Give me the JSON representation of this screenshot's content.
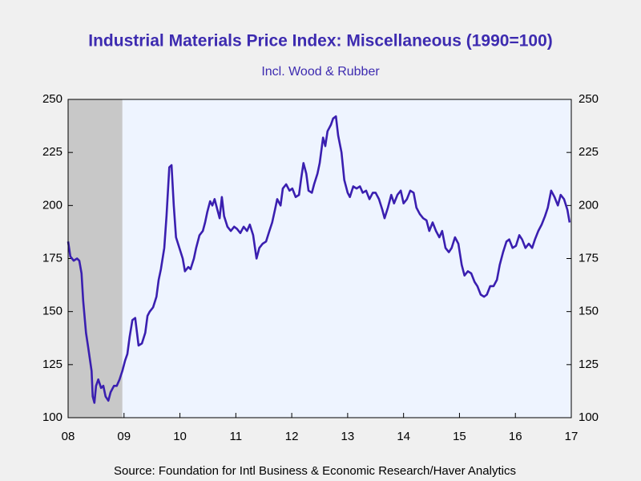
{
  "chart_data": {
    "type": "line",
    "title": "Industrial Materials Price Index: Miscellaneous (1990=100)",
    "subtitle": "Incl. Wood & Rubber",
    "source": "Source:  Foundation for Intl Business & Economic Research/Haver Analytics",
    "xlim": [
      2008,
      2017
    ],
    "xticks": [
      {
        "value": 2008,
        "label": "08"
      },
      {
        "value": 2009,
        "label": "09"
      },
      {
        "value": 2010,
        "label": "10"
      },
      {
        "value": 2011,
        "label": "11"
      },
      {
        "value": 2012,
        "label": "12"
      },
      {
        "value": 2013,
        "label": "13"
      },
      {
        "value": 2014,
        "label": "14"
      },
      {
        "value": 2015,
        "label": "15"
      },
      {
        "value": 2016,
        "label": "16"
      },
      {
        "value": 2017,
        "label": "17"
      }
    ],
    "ylim": [
      100,
      250
    ],
    "yticks": [
      100,
      125,
      150,
      175,
      200,
      225,
      250
    ],
    "y2lim": [
      100,
      250
    ],
    "y2ticks": [
      100,
      125,
      150,
      175,
      200,
      225,
      250
    ],
    "shaded_x": [
      2008,
      2008.97
    ],
    "shade_color": "#c8c8c8",
    "plot_background": "#eef4ff",
    "x": [
      2008.0,
      2008.04,
      2008.1,
      2008.16,
      2008.2,
      2008.24,
      2008.27,
      2008.32,
      2008.36,
      2008.42,
      2008.44,
      2008.47,
      2008.5,
      2008.54,
      2008.59,
      2008.63,
      2008.67,
      2008.72,
      2008.76,
      2008.82,
      2008.87,
      2008.92,
      2008.97,
      2009.02,
      2009.06,
      2009.1,
      2009.15,
      2009.2,
      2009.26,
      2009.32,
      2009.38,
      2009.42,
      2009.46,
      2009.52,
      2009.58,
      2009.62,
      2009.66,
      2009.72,
      2009.76,
      2009.81,
      2009.85,
      2009.89,
      2009.93,
      2009.99,
      2010.05,
      2010.09,
      2010.15,
      2010.19,
      2010.25,
      2010.29,
      2010.35,
      2010.41,
      2010.45,
      2010.49,
      2010.54,
      2010.58,
      2010.62,
      2010.67,
      2010.71,
      2010.75,
      2010.79,
      2010.85,
      2010.91,
      2010.97,
      2011.02,
      2011.08,
      2011.14,
      2011.2,
      2011.25,
      2011.31,
      2011.37,
      2011.42,
      2011.48,
      2011.54,
      2011.6,
      2011.65,
      2011.7,
      2011.74,
      2011.8,
      2011.84,
      2011.9,
      2011.96,
      2012.01,
      2012.07,
      2012.13,
      2012.17,
      2012.21,
      2012.26,
      2012.3,
      2012.36,
      2012.4,
      2012.46,
      2012.5,
      2012.56,
      2012.6,
      2012.64,
      2012.7,
      2012.74,
      2012.79,
      2012.83,
      2012.89,
      2012.94,
      2013.0,
      2013.04,
      2013.1,
      2013.16,
      2013.22,
      2013.27,
      2013.33,
      2013.39,
      2013.45,
      2013.5,
      2013.56,
      2013.62,
      2013.66,
      2013.72,
      2013.78,
      2013.83,
      2013.89,
      2013.95,
      2014.0,
      2014.06,
      2014.12,
      2014.18,
      2014.23,
      2014.29,
      2014.35,
      2014.41,
      2014.46,
      2014.52,
      2014.58,
      2014.64,
      2014.69,
      2014.75,
      2014.81,
      2014.86,
      2014.92,
      2014.98,
      2015.04,
      2015.09,
      2015.15,
      2015.21,
      2015.27,
      2015.32,
      2015.38,
      2015.44,
      2015.49,
      2015.55,
      2015.61,
      2015.67,
      2015.72,
      2015.78,
      2015.84,
      2015.89,
      2015.95,
      2016.01,
      2016.07,
      2016.12,
      2016.18,
      2016.24,
      2016.3,
      2016.35,
      2016.41,
      2016.47,
      2016.53,
      2016.58,
      2016.64,
      2016.7,
      2016.76,
      2016.81,
      2016.87,
      2016.93,
      2016.97
    ],
    "series": [
      {
        "name": "Miscellaneous",
        "color": "#3a1fb0",
        "values": [
          183,
          176,
          174,
          175,
          174,
          168,
          155,
          140,
          133,
          122,
          110,
          107,
          115,
          118,
          114,
          115,
          110,
          108,
          112,
          115,
          115,
          118,
          122,
          127,
          130,
          138,
          146,
          147,
          134,
          135,
          140,
          148,
          150,
          152,
          157,
          165,
          170,
          180,
          195,
          218,
          219,
          200,
          185,
          180,
          175,
          169,
          171,
          170,
          175,
          180,
          186,
          188,
          192,
          197,
          202,
          200,
          203,
          198,
          194,
          204,
          195,
          190,
          188,
          190,
          189,
          187,
          190,
          188,
          191,
          186,
          175,
          180,
          182,
          183,
          188,
          192,
          198,
          203,
          200,
          208,
          210,
          207,
          208,
          204,
          205,
          213,
          220,
          215,
          207,
          206,
          210,
          215,
          220,
          232,
          228,
          235,
          238,
          241,
          242,
          233,
          225,
          212,
          206,
          204,
          209,
          208,
          209,
          206,
          207,
          203,
          206,
          206,
          203,
          198,
          194,
          199,
          205,
          201,
          205,
          207,
          201,
          203,
          207,
          206,
          199,
          196,
          194,
          193,
          188,
          192,
          188,
          185,
          188,
          180,
          178,
          180,
          185,
          182,
          172,
          167,
          169,
          168,
          164,
          162,
          158,
          157,
          158,
          162,
          162,
          165,
          172,
          178,
          183,
          184,
          180,
          181,
          186,
          184,
          180,
          182,
          180,
          184,
          188,
          191,
          195,
          199,
          207,
          204,
          200,
          205,
          203,
          198,
          192
        ]
      }
    ]
  }
}
